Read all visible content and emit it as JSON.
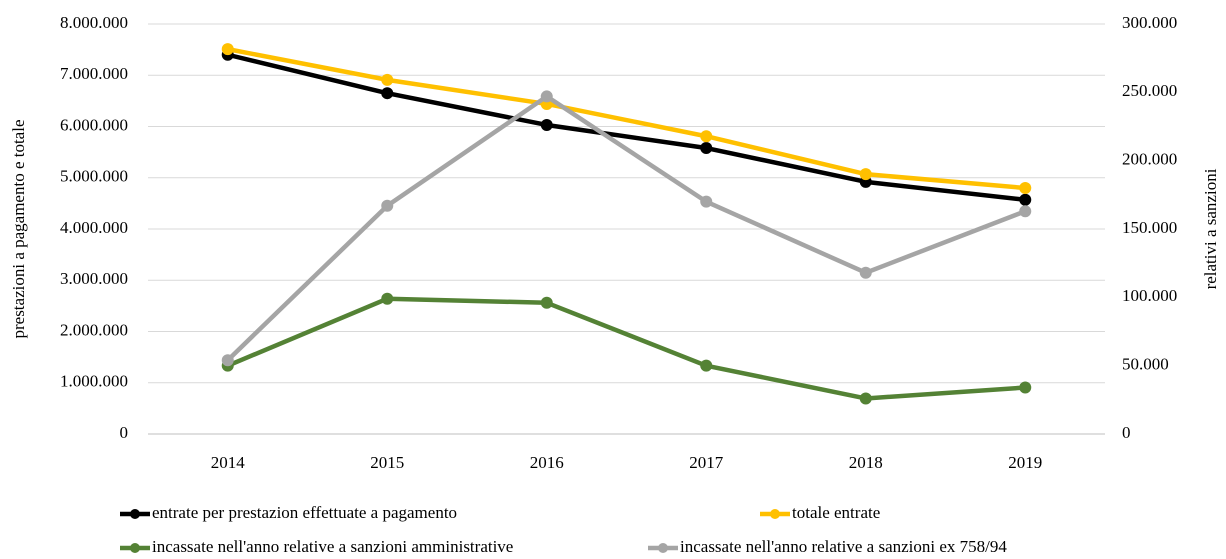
{
  "chart_data": {
    "type": "line",
    "ylabel": "prestazioni a pagamento e totale",
    "y2label": "relativi  a sanzioni",
    "categories": [
      "2014",
      "2015",
      "2016",
      "2017",
      "2018",
      "2019"
    ],
    "series": [
      {
        "name": "entrate per prestazion effettuate a pagamento",
        "color": "#000000",
        "values": [
          7400000,
          6650000,
          6030000,
          5580000,
          4920000,
          4570000
        ]
      },
      {
        "name": "totale entrate",
        "color": "#ffc000",
        "values": [
          7510000,
          6910000,
          6440000,
          5810000,
          5070000,
          4800000
        ]
      },
      {
        "name": "incassate nell'anno relative a sanzioni amministrative",
        "color": "#548235",
        "axis": "y2",
        "values": [
          50000,
          99000,
          96000,
          50000,
          26000,
          34000
        ]
      },
      {
        "name": "incassate nell'anno relative a sanzioni ex 758/94",
        "color": "#a5a5a5",
        "axis": "y2",
        "values": [
          54000,
          167000,
          247000,
          170000,
          118000,
          163000
        ]
      }
    ],
    "ylim": [
      0,
      8000000
    ],
    "yticks": [
      0,
      {
        "value": 1000000,
        "label": "1.000.000"
      },
      {
        "value": 2000000,
        "label": "2.000.000"
      },
      {
        "value": 3000000,
        "label": "3.000.000"
      },
      {
        "value": 4000000,
        "label": "4.000.000"
      },
      {
        "value": 5000000,
        "label": "5.000.000"
      },
      {
        "value": 6000000,
        "label": "6.000.000"
      },
      {
        "value": 7000000,
        "label": "7.000.000"
      },
      {
        "value": 8000000,
        "label": "8.000.000"
      }
    ],
    "y2lim": [
      0,
      300000
    ],
    "y2ticks": [
      0,
      {
        "value": 50000,
        "label": "50.000"
      },
      {
        "value": 100000,
        "label": "100.000"
      },
      {
        "value": 150000,
        "label": "150.000"
      },
      {
        "value": 200000,
        "label": "200.000"
      },
      {
        "value": 250000,
        "label": "250.000"
      },
      {
        "value": 300000,
        "label": "300.000"
      }
    ],
    "grid": true
  }
}
